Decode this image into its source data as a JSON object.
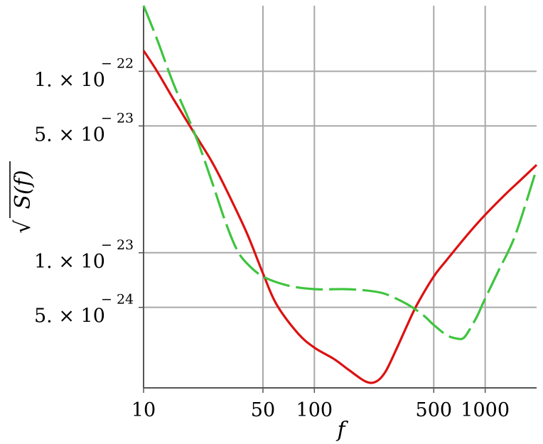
{
  "chart_data": {
    "type": "line",
    "xlabel": "f",
    "ylabel": "S(f)",
    "ylabel_prefix": "√",
    "x_scale": "log",
    "y_scale": "log",
    "xlim": [
      10,
      2000
    ],
    "ylim": [
      1.8e-24,
      2.3e-22
    ],
    "grid": true,
    "x_ticks": [
      {
        "value": 10,
        "label": "10"
      },
      {
        "value": 50,
        "label": "50"
      },
      {
        "value": 100,
        "label": "100"
      },
      {
        "value": 500,
        "label": "500"
      },
      {
        "value": 1000,
        "label": "1000"
      }
    ],
    "y_ticks": [
      {
        "value": 5e-24,
        "mantissa": "5. × 10",
        "exponent": "− 24"
      },
      {
        "value": 1e-23,
        "mantissa": "1. × 10",
        "exponent": "− 23"
      },
      {
        "value": 5e-23,
        "mantissa": "5. × 10",
        "exponent": "− 23"
      },
      {
        "value": 1e-22,
        "mantissa": "1. × 10",
        "exponent": "− 22"
      }
    ],
    "series": [
      {
        "style": "solid",
        "color": "#dd1111",
        "x": [
          10,
          12,
          15,
          20,
          25,
          30,
          40,
          50,
          60,
          80,
          100,
          130,
          160,
          200,
          230,
          260,
          300,
          350,
          400,
          500,
          600,
          800,
          1000,
          1300,
          1600,
          2000
        ],
        "y": [
          1.3e-22,
          1e-22,
          7e-23,
          4.5e-23,
          3.2e-23,
          2.3e-23,
          1.3e-23,
          7.7e-24,
          5.2e-24,
          3.6e-24,
          3e-24,
          2.6e-24,
          2.25e-24,
          1.95e-24,
          1.95e-24,
          2.2e-24,
          2.9e-24,
          4e-24,
          5.2e-24,
          7.4e-24,
          9.2e-24,
          1.28e-23,
          1.62e-23,
          2.08e-23,
          2.5e-23,
          3.05e-23
        ]
      },
      {
        "style": "dashed",
        "color": "#3ec43e",
        "x": [
          10,
          12,
          15,
          20,
          25,
          30,
          35,
          40,
          50,
          70,
          100,
          150,
          200,
          250,
          300,
          350,
          400,
          450,
          500,
          600,
          700,
          750,
          800,
          900,
          1000,
          1200,
          1500,
          2000
        ],
        "y": [
          2.3e-22,
          1.5e-22,
          8.5e-23,
          4.5e-23,
          2.5e-23,
          1.5e-23,
          1.05e-23,
          8.8e-24,
          7.4e-24,
          6.6e-24,
          6.3e-24,
          6.3e-24,
          6.2e-24,
          6e-24,
          5.6e-24,
          5.2e-24,
          4.8e-24,
          4.4e-24,
          4e-24,
          3.5e-24,
          3.35e-24,
          3.4e-24,
          3.7e-24,
          4.5e-24,
          5.6e-24,
          8e-24,
          1.25e-23,
          2.9e-23
        ]
      }
    ]
  }
}
